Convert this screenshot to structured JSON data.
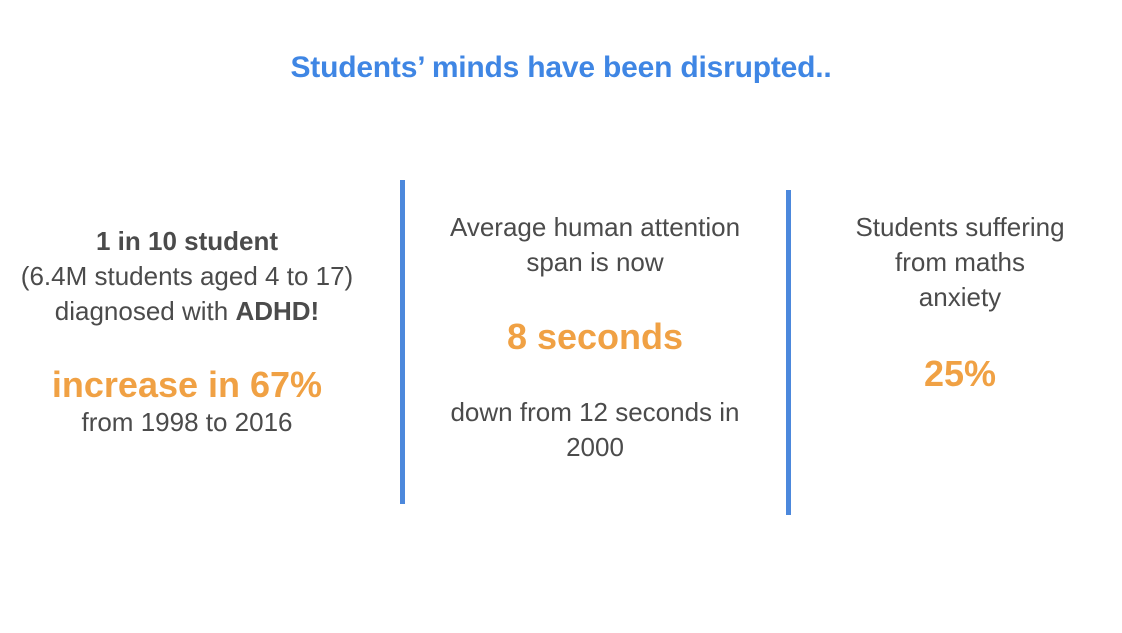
{
  "title": "Students’ minds have been disrupted..",
  "stat1": {
    "headline": "1 in 10 student",
    "detail": "(6.4M students aged 4 to 17)",
    "diagnosed_prefix": "diagnosed with ",
    "diagnosed_bold": "ADHD!",
    "highlight": "increase in 67%",
    "period": "from 1998 to 2016"
  },
  "stat2": {
    "line1": "Average human attention",
    "line2": "span is now",
    "highlight": "8 seconds",
    "line3": "down from 12 seconds in",
    "line4": "2000"
  },
  "stat3": {
    "line1": "Students suffering",
    "line2": "from maths",
    "line3": "anxiety",
    "highlight": "25%"
  },
  "colors": {
    "title": "#3f86e4",
    "highlight": "#f0a144",
    "text": "#4b4b4b",
    "divider": "#4c88dc"
  }
}
